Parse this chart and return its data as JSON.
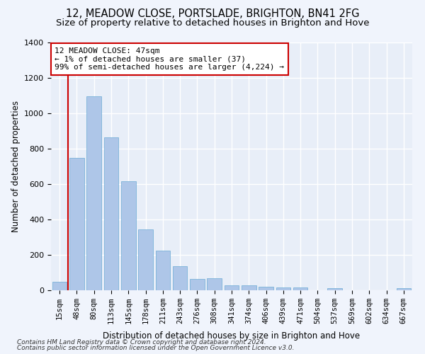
{
  "title1": "12, MEADOW CLOSE, PORTSLADE, BRIGHTON, BN41 2FG",
  "title2": "Size of property relative to detached houses in Brighton and Hove",
  "xlabel": "Distribution of detached houses by size in Brighton and Hove",
  "ylabel": "Number of detached properties",
  "footnote1": "Contains HM Land Registry data © Crown copyright and database right 2024.",
  "footnote2": "Contains public sector information licensed under the Open Government Licence v3.0.",
  "categories": [
    "15sqm",
    "48sqm",
    "80sqm",
    "113sqm",
    "145sqm",
    "178sqm",
    "211sqm",
    "243sqm",
    "276sqm",
    "308sqm",
    "341sqm",
    "374sqm",
    "406sqm",
    "439sqm",
    "471sqm",
    "504sqm",
    "537sqm",
    "569sqm",
    "602sqm",
    "634sqm",
    "667sqm"
  ],
  "values": [
    50,
    750,
    1095,
    865,
    615,
    345,
    225,
    135,
    65,
    70,
    30,
    30,
    22,
    15,
    18,
    0,
    13,
    0,
    0,
    0,
    13
  ],
  "bar_color": "#aec6e8",
  "bar_edge_color": "#6aaad4",
  "highlight_color": "#cc0000",
  "annotation_text": "12 MEADOW CLOSE: 47sqm\n← 1% of detached houses are smaller (37)\n99% of semi-detached houses are larger (4,224) →",
  "annotation_box_color": "#ffffff",
  "annotation_box_edge": "#cc0000",
  "ylim": [
    0,
    1400
  ],
  "yticks": [
    0,
    200,
    400,
    600,
    800,
    1000,
    1200,
    1400
  ],
  "background_color": "#e8eef8",
  "grid_color": "#ffffff",
  "fig_background": "#f0f4fc"
}
